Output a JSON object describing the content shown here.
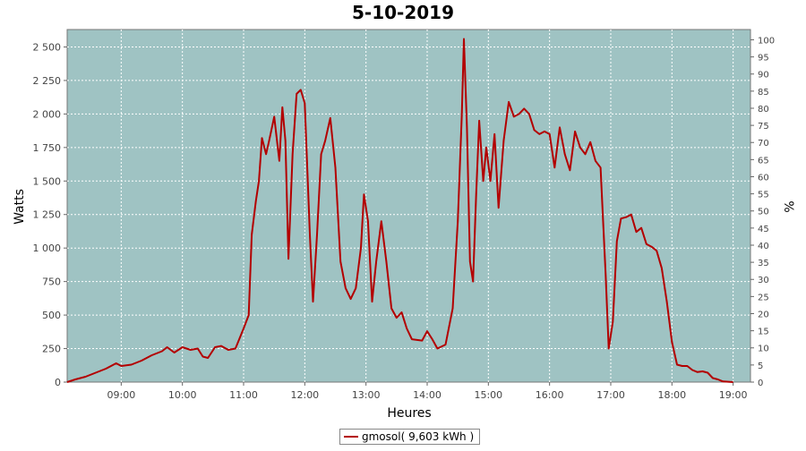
{
  "chart_data": {
    "type": "line",
    "title": "5-10-2019",
    "xlabel": "Heures",
    "ylabel": "Watts",
    "y2label": "%",
    "x_ticks": [
      "09:00",
      "10:00",
      "11:00",
      "12:00",
      "13:00",
      "14:00",
      "15:00",
      "16:00",
      "17:00",
      "18:00",
      "19:00"
    ],
    "y_ticks": [
      "0",
      "250",
      "500",
      "750",
      "1 000",
      "1 250",
      "1 500",
      "1 750",
      "2 000",
      "2 250",
      "2 500"
    ],
    "y_tick_values": [
      0,
      250,
      500,
      750,
      1000,
      1250,
      1500,
      1750,
      2000,
      2250,
      2500
    ],
    "y2_ticks": [
      "0",
      "5",
      "10",
      "15",
      "20",
      "25",
      "30",
      "35",
      "40",
      "45",
      "50",
      "55",
      "60",
      "65",
      "70",
      "75",
      "80",
      "85",
      "90",
      "95",
      "100"
    ],
    "xlim": [
      "08:07",
      "19:17"
    ],
    "ylim": [
      0,
      2630
    ],
    "y2lim": [
      0,
      103
    ],
    "grid": true,
    "legend_position": "bottom",
    "colors": {
      "plot_bg": "#9fc3c3",
      "line": "#b30000",
      "grid": "#ffffff"
    },
    "series": [
      {
        "name": "gmosol( 9,603 kWh )",
        "points": [
          [
            "08:05",
            0
          ],
          [
            "08:15",
            20
          ],
          [
            "08:25",
            40
          ],
          [
            "08:35",
            70
          ],
          [
            "08:45",
            100
          ],
          [
            "08:55",
            140
          ],
          [
            "09:00",
            120
          ],
          [
            "09:10",
            130
          ],
          [
            "09:20",
            160
          ],
          [
            "09:30",
            200
          ],
          [
            "09:40",
            230
          ],
          [
            "09:45",
            260
          ],
          [
            "09:52",
            220
          ],
          [
            "10:00",
            260
          ],
          [
            "10:08",
            240
          ],
          [
            "10:15",
            250
          ],
          [
            "10:20",
            190
          ],
          [
            "10:25",
            180
          ],
          [
            "10:32",
            260
          ],
          [
            "10:38",
            270
          ],
          [
            "10:45",
            240
          ],
          [
            "10:52",
            250
          ],
          [
            "11:00",
            400
          ],
          [
            "11:05",
            500
          ],
          [
            "11:08",
            1100
          ],
          [
            "11:12",
            1350
          ],
          [
            "11:15",
            1500
          ],
          [
            "11:18",
            1820
          ],
          [
            "11:22",
            1700
          ],
          [
            "11:25",
            1800
          ],
          [
            "11:30",
            1980
          ],
          [
            "11:35",
            1650
          ],
          [
            "11:38",
            2050
          ],
          [
            "11:41",
            1800
          ],
          [
            "11:44",
            920
          ],
          [
            "11:48",
            1700
          ],
          [
            "11:52",
            2150
          ],
          [
            "11:56",
            2180
          ],
          [
            "12:00",
            2080
          ],
          [
            "12:05",
            1100
          ],
          [
            "12:08",
            600
          ],
          [
            "12:12",
            1100
          ],
          [
            "12:16",
            1700
          ],
          [
            "12:20",
            1800
          ],
          [
            "12:25",
            1970
          ],
          [
            "12:30",
            1600
          ],
          [
            "12:35",
            900
          ],
          [
            "12:40",
            700
          ],
          [
            "12:45",
            620
          ],
          [
            "12:50",
            700
          ],
          [
            "12:55",
            1000
          ],
          [
            "12:58",
            1400
          ],
          [
            "13:02",
            1200
          ],
          [
            "13:06",
            600
          ],
          [
            "13:10",
            900
          ],
          [
            "13:15",
            1200
          ],
          [
            "13:20",
            900
          ],
          [
            "13:25",
            550
          ],
          [
            "13:30",
            480
          ],
          [
            "13:35",
            520
          ],
          [
            "13:40",
            400
          ],
          [
            "13:45",
            320
          ],
          [
            "13:55",
            310
          ],
          [
            "14:00",
            380
          ],
          [
            "14:05",
            320
          ],
          [
            "14:10",
            250
          ],
          [
            "14:18",
            280
          ],
          [
            "14:25",
            550
          ],
          [
            "14:30",
            1200
          ],
          [
            "14:34",
            2000
          ],
          [
            "14:36",
            2560
          ],
          [
            "14:39",
            1900
          ],
          [
            "14:42",
            900
          ],
          [
            "14:45",
            750
          ],
          [
            "14:48",
            1400
          ],
          [
            "14:51",
            1950
          ],
          [
            "14:55",
            1500
          ],
          [
            "14:58",
            1750
          ],
          [
            "15:02",
            1500
          ],
          [
            "15:06",
            1850
          ],
          [
            "15:10",
            1300
          ],
          [
            "15:15",
            1800
          ],
          [
            "15:20",
            2090
          ],
          [
            "15:25",
            1980
          ],
          [
            "15:30",
            2000
          ],
          [
            "15:35",
            2040
          ],
          [
            "15:40",
            2000
          ],
          [
            "15:45",
            1880
          ],
          [
            "15:50",
            1850
          ],
          [
            "15:55",
            1870
          ],
          [
            "16:00",
            1850
          ],
          [
            "16:05",
            1600
          ],
          [
            "16:10",
            1900
          ],
          [
            "16:15",
            1700
          ],
          [
            "16:20",
            1580
          ],
          [
            "16:25",
            1870
          ],
          [
            "16:30",
            1750
          ],
          [
            "16:35",
            1700
          ],
          [
            "16:40",
            1790
          ],
          [
            "16:45",
            1650
          ],
          [
            "16:50",
            1600
          ],
          [
            "16:55",
            800
          ],
          [
            "16:58",
            250
          ],
          [
            "17:02",
            450
          ],
          [
            "17:06",
            1050
          ],
          [
            "17:10",
            1220
          ],
          [
            "17:15",
            1230
          ],
          [
            "17:20",
            1250
          ],
          [
            "17:25",
            1120
          ],
          [
            "17:30",
            1150
          ],
          [
            "17:35",
            1030
          ],
          [
            "17:40",
            1010
          ],
          [
            "17:45",
            980
          ],
          [
            "17:50",
            850
          ],
          [
            "17:55",
            600
          ],
          [
            "18:00",
            300
          ],
          [
            "18:05",
            130
          ],
          [
            "18:10",
            120
          ],
          [
            "18:15",
            120
          ],
          [
            "18:20",
            90
          ],
          [
            "18:25",
            75
          ],
          [
            "18:30",
            80
          ],
          [
            "18:35",
            70
          ],
          [
            "18:40",
            30
          ],
          [
            "18:45",
            20
          ],
          [
            "18:50",
            5
          ],
          [
            "19:00",
            0
          ]
        ]
      }
    ]
  }
}
